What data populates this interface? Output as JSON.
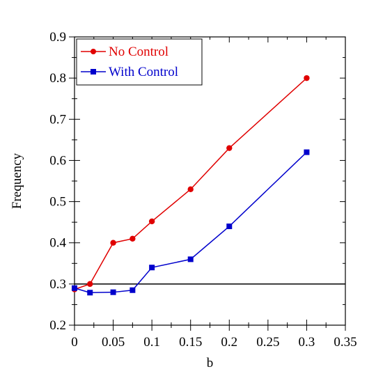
{
  "chart_data": {
    "type": "line",
    "title": "",
    "xlabel": "b",
    "ylabel": "Frequency",
    "xlim": [
      0,
      0.35
    ],
    "ylim": [
      0.2,
      0.9
    ],
    "x_ticks": [
      "0",
      "0.05",
      "0.1",
      "0.15",
      "0.2",
      "0.25",
      "0.3",
      "0.35"
    ],
    "y_ticks": [
      "0.2",
      "0.3",
      "0.4",
      "0.5",
      "0.6",
      "0.7",
      "0.8",
      "0.9"
    ],
    "x_tick_values": [
      0,
      0.05,
      0.1,
      0.15,
      0.2,
      0.25,
      0.3,
      0.35
    ],
    "y_tick_values": [
      0.2,
      0.3,
      0.4,
      0.5,
      0.6,
      0.7,
      0.8,
      0.9
    ],
    "grid": false,
    "legend_position": "top-left",
    "reference_line": {
      "y": 0.3
    },
    "series": [
      {
        "name": "No Control",
        "color": "#e00000",
        "marker": "circle",
        "x": [
          0,
          0.02,
          0.05,
          0.075,
          0.1,
          0.15,
          0.2,
          0.3
        ],
        "y": [
          0.287,
          0.3,
          0.4,
          0.41,
          0.452,
          0.53,
          0.63,
          0.8
        ]
      },
      {
        "name": "With Control",
        "color": "#0000cc",
        "marker": "square",
        "x": [
          0,
          0.02,
          0.05,
          0.075,
          0.1,
          0.15,
          0.2,
          0.3
        ],
        "y": [
          0.29,
          0.279,
          0.28,
          0.285,
          0.34,
          0.36,
          0.44,
          0.62
        ]
      }
    ]
  }
}
